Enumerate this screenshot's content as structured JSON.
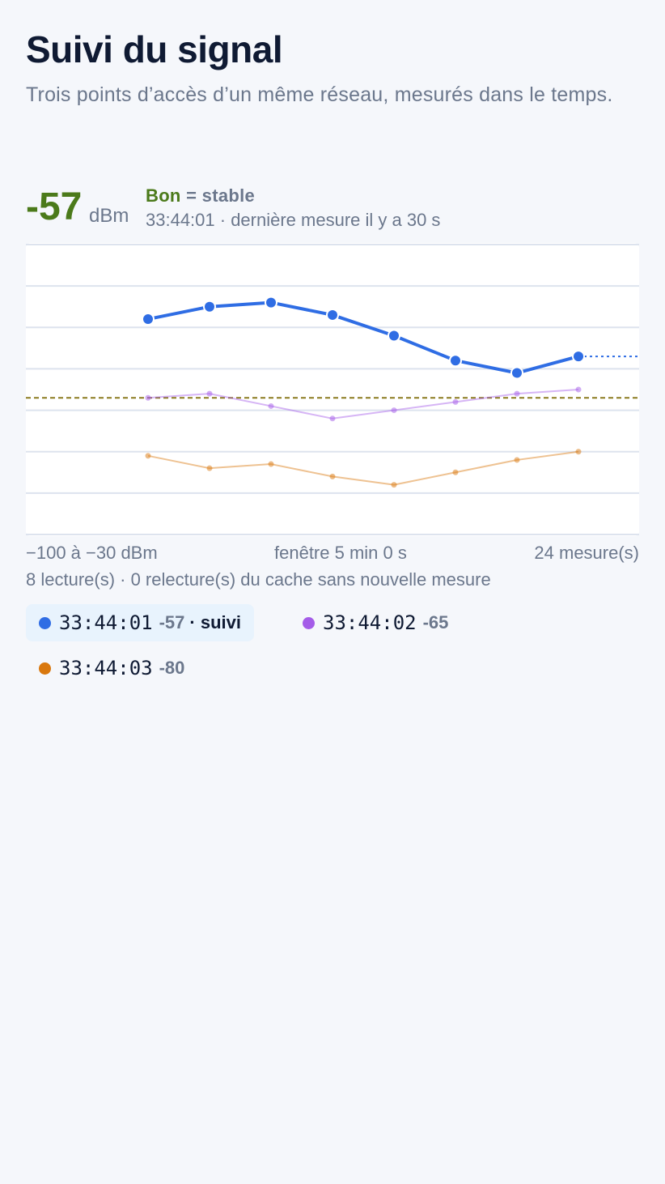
{
  "header": {
    "title": "Suivi du signal",
    "subtitle": "Trois points d’accès d’un même réseau, mesurés dans le temps."
  },
  "current": {
    "value": "-57",
    "unit": "dBm",
    "quality_label": "Bon",
    "trend": "= stable",
    "meta": "33:44:01 · dernière mesure il y a 30 s"
  },
  "footer": {
    "range_label": "−100 à −30 dBm",
    "window_label": "fenêtre 5 min 0 s",
    "count_label": "24 mesure(s)",
    "reads_label": "8 lecture(s) · 0 relecture(s) du cache sans nouvelle mesure"
  },
  "legend": [
    {
      "time": "33:44:01",
      "value": "-57",
      "tag": "· suivi",
      "color": "#2f6de4",
      "active": true
    },
    {
      "time": "33:44:02",
      "value": "-65",
      "tag": "",
      "color": "#a45ce8",
      "active": false
    },
    {
      "time": "33:44:03",
      "value": "-80",
      "tag": "",
      "color": "#d9780e",
      "active": false
    }
  ],
  "chart_data": {
    "type": "line",
    "ylim": [
      -100,
      -30
    ],
    "grid": true,
    "reference_line": -67,
    "reference_color": "#8a7a1e",
    "series": [
      {
        "name": "33:44:01",
        "color": "#2f6de4",
        "highlighted": true,
        "values": [
          -48,
          -45,
          -44,
          -47,
          -52,
          -58,
          -61,
          -57
        ]
      },
      {
        "name": "33:44:02",
        "color": "#a45ce8",
        "highlighted": false,
        "values": [
          -67,
          -66,
          -69,
          -72,
          -70,
          -68,
          -66,
          -65
        ]
      },
      {
        "name": "33:44:03",
        "color": "#d9780e",
        "highlighted": false,
        "values": [
          -81,
          -84,
          -83,
          -86,
          -88,
          -85,
          -82,
          -80
        ]
      }
    ]
  }
}
